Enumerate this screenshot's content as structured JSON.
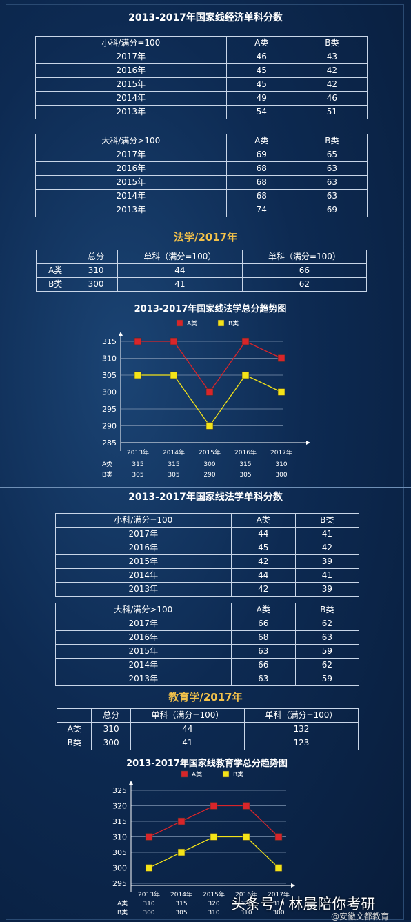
{
  "sections": {
    "econ_title": "2013-2017年国家线经济单科分数",
    "law_subtitle": "法学/2017年",
    "law_title": "2013-2017年国家线法学单科分数",
    "edu_subtitle": "教育学/2017年"
  },
  "tables": {
    "econ_small": {
      "header": [
        "小科/满分=100",
        "A类",
        "B类"
      ],
      "rows": [
        [
          "2017年",
          "46",
          "43"
        ],
        [
          "2016年",
          "45",
          "42"
        ],
        [
          "2015年",
          "45",
          "42"
        ],
        [
          "2014年",
          "49",
          "46"
        ],
        [
          "2013年",
          "54",
          "51"
        ]
      ]
    },
    "econ_large": {
      "header": [
        "大科/满分>100",
        "A类",
        "B类"
      ],
      "rows": [
        [
          "2017年",
          "69",
          "65"
        ],
        [
          "2016年",
          "68",
          "63"
        ],
        [
          "2015年",
          "68",
          "63"
        ],
        [
          "2014年",
          "68",
          "63"
        ],
        [
          "2013年",
          "74",
          "69"
        ]
      ]
    },
    "law_2017": {
      "header": [
        "",
        "总分",
        "单科（满分=100）",
        "单科（满分=100）"
      ],
      "rows": [
        [
          "A类",
          "310",
          "44",
          "66"
        ],
        [
          "B类",
          "300",
          "41",
          "62"
        ]
      ]
    },
    "law_small": {
      "header": [
        "小科/满分=100",
        "A类",
        "B类"
      ],
      "rows": [
        [
          "2017年",
          "44",
          "41"
        ],
        [
          "2016年",
          "45",
          "42"
        ],
        [
          "2015年",
          "42",
          "39"
        ],
        [
          "2014年",
          "44",
          "41"
        ],
        [
          "2013年",
          "42",
          "39"
        ]
      ]
    },
    "law_large": {
      "header": [
        "大科/满分>100",
        "A类",
        "B类"
      ],
      "rows": [
        [
          "2017年",
          "66",
          "62"
        ],
        [
          "2016年",
          "68",
          "63"
        ],
        [
          "2015年",
          "63",
          "59"
        ],
        [
          "2014年",
          "66",
          "62"
        ],
        [
          "2013年",
          "63",
          "59"
        ]
      ]
    },
    "edu_2017": {
      "header": [
        "",
        "总分",
        "单科（满分=100）",
        "单科（满分=100）"
      ],
      "rows": [
        [
          "A类",
          "310",
          "44",
          "132"
        ],
        [
          "B类",
          "300",
          "41",
          "123"
        ]
      ]
    }
  },
  "chart_data": [
    {
      "type": "line",
      "title": "2013-2017年国家线法学总分趋势图",
      "categories": [
        "2013年",
        "2014年",
        "2015年",
        "2016年",
        "2017年"
      ],
      "series": [
        {
          "name": "A类",
          "values": [
            315,
            315,
            300,
            315,
            310
          ],
          "color": "#d8252a"
        },
        {
          "name": "B类",
          "values": [
            305,
            305,
            290,
            305,
            300
          ],
          "color": "#f4e318"
        }
      ],
      "ylim": [
        285,
        315
      ],
      "yticks": [
        285,
        290,
        295,
        300,
        305,
        310,
        315
      ],
      "grid": true,
      "legend": "top"
    },
    {
      "type": "line",
      "title": "2013-2017年国家线教育学总分趋势图",
      "categories": [
        "2013年",
        "2014年",
        "2015年",
        "2016年",
        "2017年"
      ],
      "series": [
        {
          "name": "A类",
          "values": [
            310,
            315,
            320,
            320,
            310
          ],
          "color": "#d8252a"
        },
        {
          "name": "B类",
          "values": [
            300,
            305,
            310,
            310,
            300
          ],
          "color": "#f4e318"
        }
      ],
      "ylim": [
        295,
        325
      ],
      "yticks": [
        295,
        300,
        305,
        310,
        315,
        320,
        325
      ],
      "grid": true,
      "legend": "top"
    }
  ],
  "watermark": {
    "main": "头条号 / 林晨陪你考研",
    "sub": "@安徽文都教育"
  }
}
